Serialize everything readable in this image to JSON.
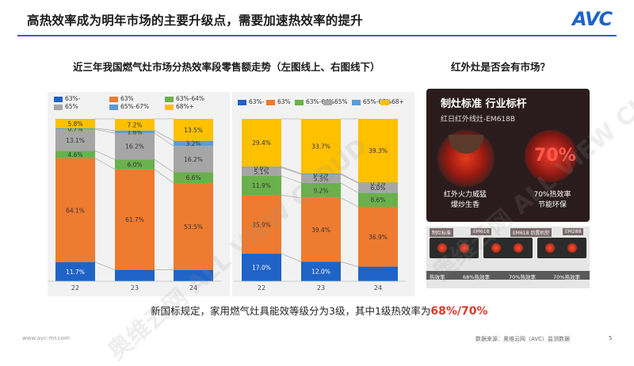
{
  "header": {
    "title": "高热效率成为明年市场的主要升级点，需要加速热效率的提升",
    "logo": "AVC"
  },
  "chart_section_title": "近三年我国燃气灶市场分热效率段零售额走势（左图线上、右图线下）",
  "chart_data": [
    {
      "type": "bar",
      "stacked": true,
      "percent_stacked": true,
      "categories": [
        "22",
        "23",
        "24"
      ],
      "legend": [
        "63%-",
        "63%",
        "63%-64%",
        "65%",
        "65%-67%",
        "68%+"
      ],
      "legend_placement": "top",
      "series": [
        {
          "name": "63%-",
          "color": "#1f63c6",
          "values": [
            11.7,
            7.0,
            7.0
          ],
          "labels": [
            "11.7%",
            "",
            ""
          ]
        },
        {
          "name": "63%",
          "color": "#ee7b30",
          "values": [
            64.1,
            61.7,
            53.5
          ],
          "labels": [
            "64.1%",
            "61.7%",
            "53.5%"
          ]
        },
        {
          "name": "63%-64%",
          "color": "#6ab04c",
          "values": [
            4.6,
            6.0,
            6.6
          ],
          "labels": [
            "4.6%",
            "6.0%",
            "6.6%"
          ]
        },
        {
          "name": "65%",
          "color": "#a6a6a6",
          "values": [
            13.1,
            16.2,
            16.2
          ],
          "labels": [
            "13.1%",
            "16.2%",
            "16.2%"
          ]
        },
        {
          "name": "65%-67%",
          "color": "#5b9bd5",
          "values": [
            0.7,
            1.6,
            3.2
          ],
          "labels": [
            "0.7%",
            "1.6%",
            "3.2%"
          ]
        },
        {
          "name": "68%+",
          "color": "#ffc000",
          "values": [
            5.8,
            7.2,
            13.5
          ],
          "labels": [
            "5.8%",
            "7.2%",
            "13.5%"
          ]
        }
      ]
    },
    {
      "type": "bar",
      "stacked": true,
      "percent_stacked": true,
      "categories": [
        "22",
        "23",
        "24"
      ],
      "legend": [
        "63%-",
        "63%",
        "63%-64%",
        "65%",
        "65%-67%",
        "68+"
      ],
      "legend_placement": "top",
      "series": [
        {
          "name": "63%-",
          "color": "#1f63c6",
          "values": [
            17.0,
            12.0,
            9.0
          ],
          "labels": [
            "17.0%",
            "12.0%",
            ""
          ]
        },
        {
          "name": "63%",
          "color": "#ee7b30",
          "values": [
            35.9,
            39.4,
            36.9
          ],
          "labels": [
            "35.9%",
            "39.4%",
            "36.9%"
          ]
        },
        {
          "name": "63%-64%",
          "color": "#6ab04c",
          "values": [
            11.9,
            9.2,
            8.6
          ],
          "labels": [
            "11.9%",
            "9.2%",
            "8.6%"
          ]
        },
        {
          "name": "65%",
          "color": "#a6a6a6",
          "values": [
            5.1,
            5.3,
            6.0
          ],
          "labels": [
            "5.1%",
            "5.3%",
            "6.0%"
          ]
        },
        {
          "name": "65%-67%",
          "color": "#5b9bd5",
          "values": [
            0.6,
            0.5,
            0.3
          ],
          "labels": [
            "0.6%",
            "0.5%",
            "0.3%"
          ]
        },
        {
          "name": "68+",
          "color": "#ffc000",
          "values": [
            29.4,
            33.7,
            39.3
          ],
          "labels": [
            "29.4%",
            "33.7%",
            "39.3%"
          ]
        }
      ]
    }
  ],
  "infrared": {
    "title": "红外灶是否会有市场？",
    "product_standard": "制灶标准 行业标杆",
    "product_model": "红日红外线灶-EM618B",
    "label_left_1": "红外火力威猛",
    "label_left_2": "爆炒生香",
    "percent": "70%",
    "label_right_1": "70%热效率",
    "label_right_2": "节能环保",
    "compare_header_1": "制灶标准",
    "compare_header_2": "EM618",
    "compare_header_3": "EM618 后置机型",
    "compare_header_4": "EM288",
    "compare_row_label": "热效率",
    "compare_row_v1": "68%热效率",
    "compare_row_v2": "70%热效率",
    "compare_row_v3": "70%热效率"
  },
  "note": {
    "text": "新国标规定，家用燃气灶具能效等级分为3级，其中1级热效率为",
    "highlight": "68%/70%"
  },
  "footer": {
    "url": "www.avc-mr.com",
    "source": "数据来源：奥维云网（AVC）监测数据",
    "page": "5"
  },
  "watermark": "奥维云网 ALL VIEW CLOUD"
}
